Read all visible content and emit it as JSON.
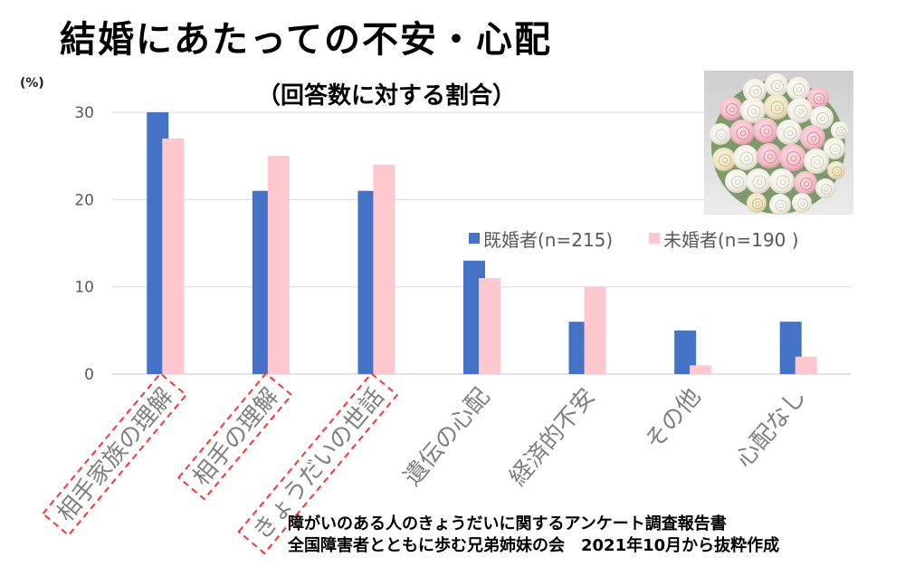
{
  "chart_data": {
    "type": "bar",
    "title": "結婚にあたっての不安・心配",
    "subtitle": "（回答数に対する割合）",
    "xlabel": "",
    "ylabel": "(%)",
    "categories": [
      "相手家族の理解",
      "相手の理解",
      "きょうだいの世話",
      "遺伝の心配",
      "経済的不安",
      "その他",
      "心配なし"
    ],
    "series": [
      {
        "name": "既婚者(n=215)",
        "color": "#4472C4",
        "values": [
          30,
          21,
          21,
          13,
          6,
          5,
          6
        ]
      },
      {
        "name": "未婚者(n=190 )",
        "color": "#FFC7CE",
        "values": [
          27,
          25,
          24,
          11,
          10,
          1,
          2
        ]
      }
    ],
    "ylim": [
      0,
      30
    ],
    "yticks": [
      0,
      10,
      20,
      30
    ],
    "grid": true,
    "legend": "top-right",
    "highlighted_indices": [
      0,
      1,
      2
    ],
    "highlight_color": "#FF3030"
  },
  "source": {
    "line1": "障がいのある人のきょうだいに関するアンケート調査報告書",
    "line2": "全国障害者とともに歩む兄弟姉妹の会　2021年10月から抜粋作成"
  },
  "photo": {
    "icon": "rose-bouquet-photo"
  }
}
